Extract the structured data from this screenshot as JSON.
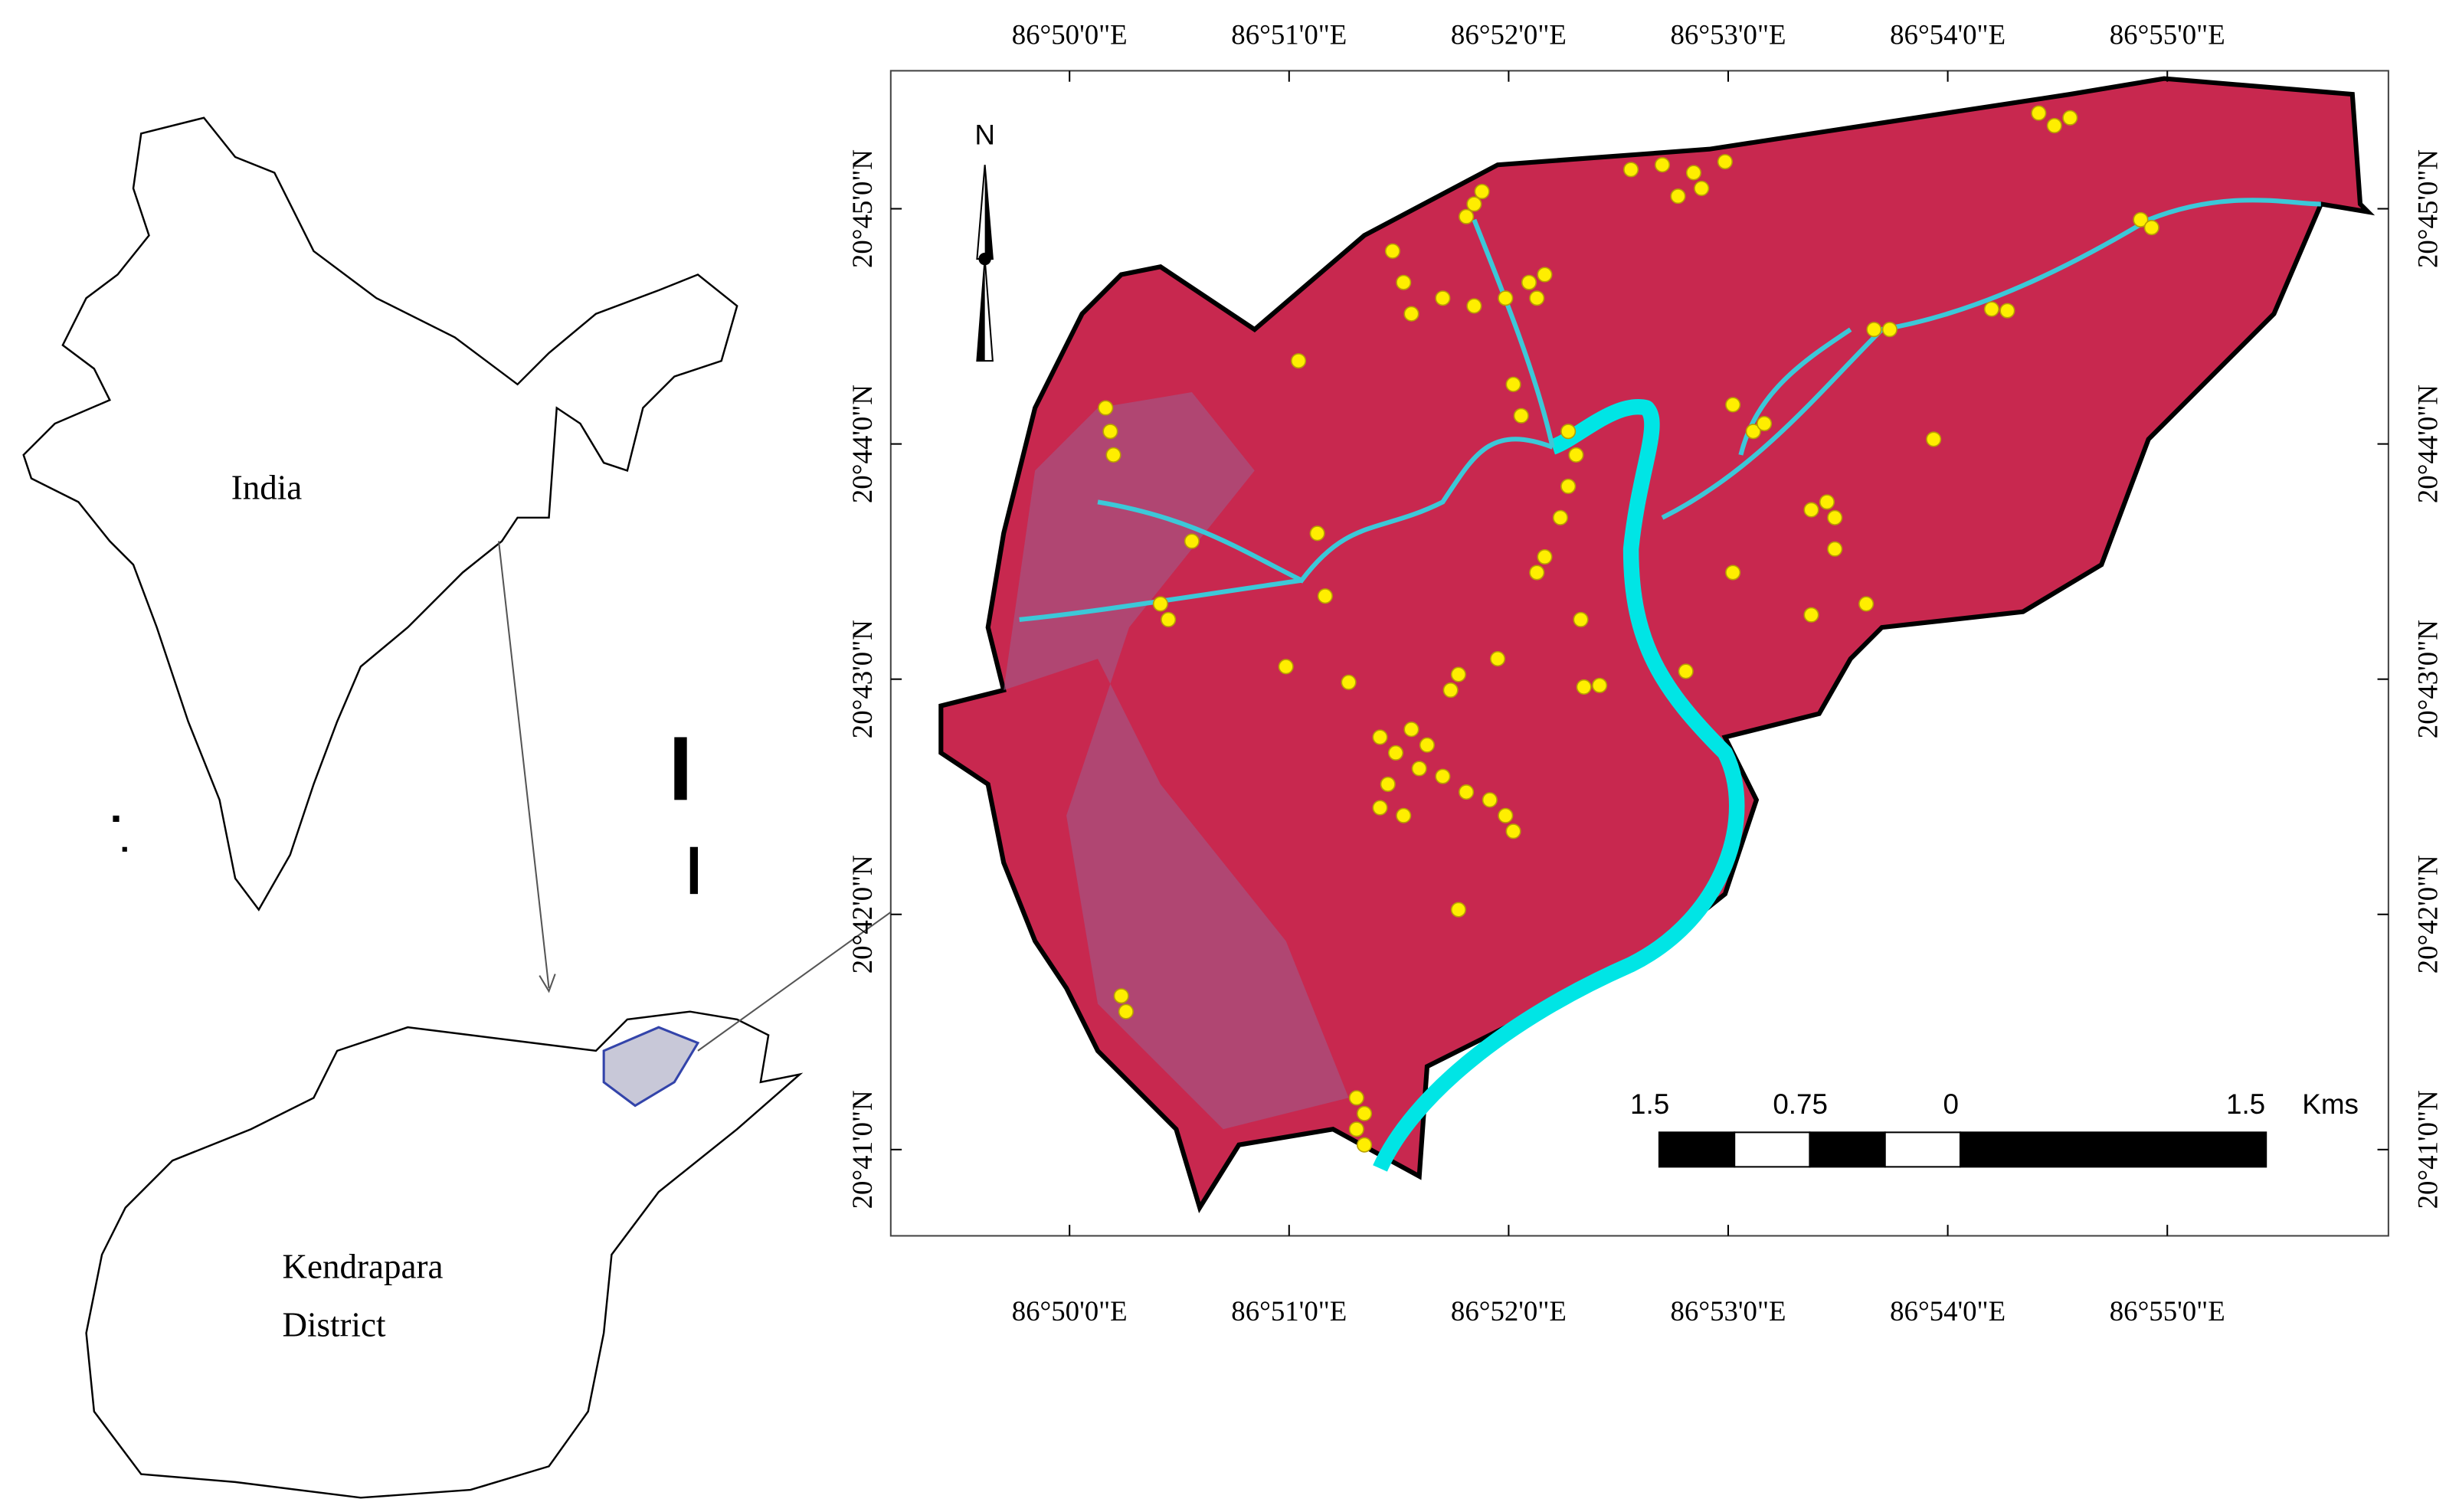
{
  "inset": {
    "country_label": "India",
    "district_label": [
      "Kendrapara",
      "District"
    ]
  },
  "map": {
    "north_label": "N",
    "longitude_labels": [
      "86°50'0\"E",
      "86°51'0\"E",
      "86°52'0\"E",
      "86°53'0\"E",
      "86°54'0\"E",
      "86°55'0\"E"
    ],
    "latitude_labels": [
      "20°45'0\"N",
      "20°44'0\"N",
      "20°43'0\"N",
      "20°42'0\"N",
      "20°41'0\"N"
    ],
    "scale_bar": {
      "labels": [
        "1.5",
        "0.75",
        "0",
        "1.5"
      ],
      "unit": "Kms"
    }
  }
}
